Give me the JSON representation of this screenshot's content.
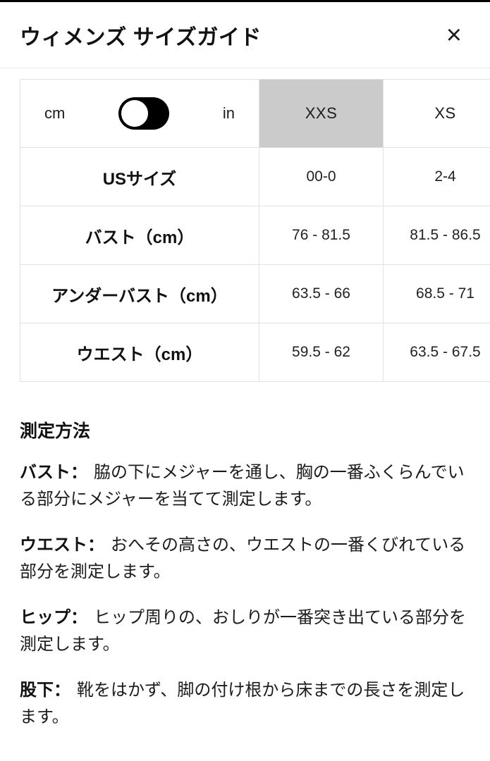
{
  "header": {
    "title": "ウィメンズ サイズガイド",
    "close_icon": "×"
  },
  "table": {
    "unit_left": "cm",
    "unit_right": "in",
    "selected_unit": "cm",
    "columns": [
      "XXS",
      "XS"
    ],
    "selected_column": "XXS",
    "rows": [
      {
        "label": "USサイズ",
        "values": [
          "00-0",
          "2-4"
        ]
      },
      {
        "label": "バスト（cm）",
        "values": [
          "76 - 81.5",
          "81.5 - 86.5"
        ]
      },
      {
        "label": "アンダーバスト（cm）",
        "values": [
          "63.5 - 66",
          "68.5 - 71"
        ]
      },
      {
        "label": "ウエスト（cm）",
        "values": [
          "59.5 - 62",
          "63.5 - 67.5"
        ]
      }
    ]
  },
  "measurement": {
    "heading": "測定方法",
    "items": [
      {
        "term": "バスト：",
        "description": "脇の下にメジャーを通し、胸の一番ふくらんでいる部分にメジャーを当てて測定します。"
      },
      {
        "term": "ウエスト：",
        "description": "おへその高さの、ウエストの一番くびれている部分を測定します。"
      },
      {
        "term": "ヒップ：",
        "description": "ヒップ周りの、おしりが一番突き出ている部分を測定します。"
      },
      {
        "term": "股下：",
        "description": "靴をはかず、脚の付け根から床までの長さを測定します。"
      }
    ]
  },
  "colors": {
    "selected_header_bg": "#cbcbcb",
    "table_border": "#e2e2e2",
    "text": "#1c1c1c",
    "toggle_bg": "#000000",
    "toggle_knob": "#ffffff",
    "top_bar": "#000000"
  }
}
